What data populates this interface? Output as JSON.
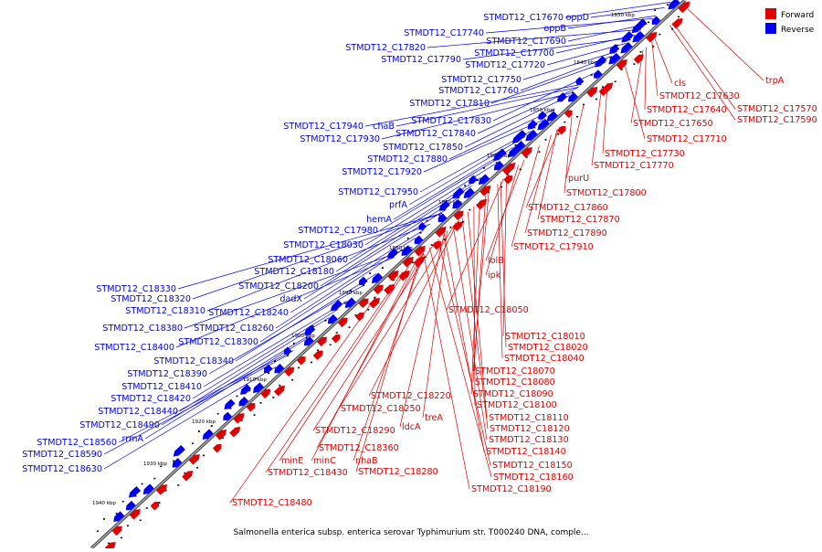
{
  "legend": [
    {
      "name": "Forward",
      "color": "#e00000"
    },
    {
      "name": "Reverse",
      "color": "#0000f0"
    }
  ],
  "caption": "Salmonella enterica subsp. enterica serovar Typhimurium str. T000240 DNA, comple...",
  "colors": {
    "axis": "#555555",
    "forward": "#e00000",
    "reverse": "#0000f0",
    "tick": "#000000"
  },
  "ticks": [
    "1830 kbp",
    "1840 kbp",
    "1850 kbp",
    "1860 kbp",
    "1870 kbp",
    "1880 kbp",
    "1890 kbp",
    "1900 kbp",
    "1910 kbp",
    "1920 kbp",
    "1930 kbp",
    "1940 kbp"
  ],
  "reverse_labels": [
    "STMDT12_C17670",
    "oppD",
    "oppB",
    "STMDT12_C17740",
    "STMDT12_C17690",
    "STMDT12_C17820",
    "STMDT12_C17700",
    "STMDT12_C17790",
    "STMDT12_C17720",
    "STMDT12_C17750",
    "STMDT12_C17760",
    "STMDT12_C17810",
    "STMDT12_C17830",
    "STMDT12_C17940",
    "chaB",
    "STMDT12_C17840",
    "STMDT12_C17930",
    "STMDT12_C17850",
    "STMDT12_C17880",
    "STMDT12_C17920",
    "STMDT12_C17950",
    "prfA",
    "hemA",
    "STMDT12_C17980",
    "STMDT12_C18030",
    "STMDT12_C18060",
    "STMDT12_C18180",
    "STMDT12_C18200",
    "STMDT12_C18330",
    "dadX",
    "STMDT12_C18320",
    "STMDT12_C18310",
    "STMDT12_C18240",
    "STMDT12_C18380",
    "STMDT12_C18260",
    "STMDT12_C18300",
    "STMDT12_C18400",
    "STMDT12_C18340",
    "STMDT12_C18390",
    "STMDT12_C18410",
    "STMDT12_C18420",
    "STMDT12_C18440",
    "STMDT12_C18490",
    "rrmA",
    "STMDT12_C18560",
    "STMDT12_C18590",
    "STMDT12_C18630"
  ],
  "forward_labels": [
    "trpA",
    "cls",
    "STMDT12_C17630",
    "STMDT12_C17570",
    "STMDT12_C17640",
    "STMDT12_C17590",
    "STMDT12_C17650",
    "STMDT12_C17710",
    "STMDT12_C17730",
    "STMDT12_C17770",
    "purU",
    "STMDT12_C17800",
    "STMDT12_C17860",
    "STMDT12_C17870",
    "STMDT12_C17890",
    "STMDT12_C17910",
    "lolB",
    "ipk",
    "STMDT12_C18050",
    "STMDT12_C18010",
    "STMDT12_C18020",
    "STMDT12_C18040",
    "STMDT12_C18070",
    "STMDT12_C18080",
    "STMDT12_C18090",
    "STMDT12_C18100",
    "STMDT12_C18220",
    "STMDT12_C18250",
    "treA",
    "STMDT12_C18110",
    "ldcA",
    "STMDT12_C18120",
    "STMDT12_C18290",
    "STMDT12_C18130",
    "STMDT12_C18360",
    "STMDT12_C18140",
    "minE",
    "minC",
    "nhaB",
    "STMDT12_C18150",
    "STMDT12_C18430",
    "STMDT12_C18280",
    "STMDT12_C18160",
    "STMDT12_C18190",
    "STMDT12_C18480"
  ]
}
